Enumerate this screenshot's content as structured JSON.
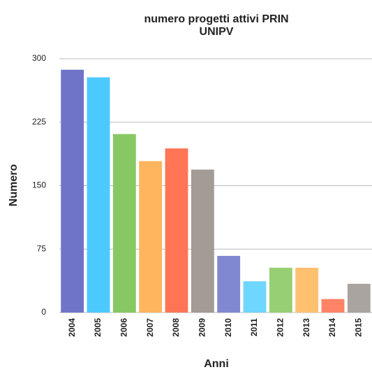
{
  "chart_data": {
    "type": "bar",
    "title": [
      "numero progetti attivi PRIN",
      "UNIPV"
    ],
    "x_label": "Anni",
    "y_label": "Numero",
    "categories": [
      "2004",
      "2005",
      "2006",
      "2007",
      "2008",
      "2009",
      "2010",
      "2011",
      "2012",
      "2013",
      "2014",
      "2015"
    ],
    "values": [
      287,
      278,
      211,
      179,
      194,
      169,
      67,
      37,
      53,
      53,
      16,
      34
    ],
    "colors": [
      "#6f74c9",
      "#4ccaff",
      "#88c864",
      "#ffb45e",
      "#ff7556",
      "#a39b95",
      "#8088d2",
      "#6fd6ff",
      "#96cf74",
      "#ffc070",
      "#ff8366",
      "#aaa4a0"
    ],
    "ylim": [
      0,
      300
    ],
    "yticks": [
      0,
      75,
      150,
      225,
      300
    ],
    "grid": true
  }
}
